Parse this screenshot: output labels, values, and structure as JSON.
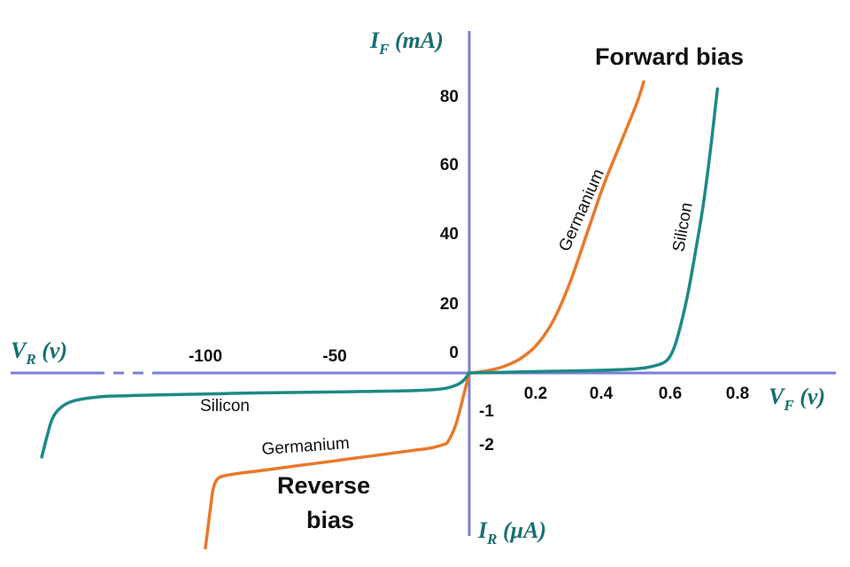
{
  "chart_data": {
    "type": "line",
    "title": "",
    "colors": {
      "axis": "#7b7fd6",
      "germanium": "#e8792b",
      "silicon": "#1d8a86",
      "axis_title": "#1a6f6f"
    },
    "axis_titles": {
      "forward_current": {
        "main": "I",
        "sub": "F",
        "unit": " (mA)"
      },
      "reverse_current": {
        "main": "I",
        "sub": "R",
        "unit": " (μA)"
      },
      "forward_voltage": {
        "main": "V",
        "sub": "F",
        "unit": " (v)"
      },
      "reverse_voltage": {
        "main": "V",
        "sub": "R",
        "unit": " (v)"
      }
    },
    "quadrant_labels": {
      "forward": "Forward bias",
      "reverse_line1": "Reverse",
      "reverse_line2": "bias"
    },
    "x_forward_ticks": [
      "0.2",
      "0.4",
      "0.6",
      "0.8"
    ],
    "x_reverse_ticks": [
      "-100",
      "-50"
    ],
    "y_forward_ticks": [
      "0",
      "20",
      "40",
      "60",
      "80"
    ],
    "y_reverse_ticks": [
      "-1",
      "-2"
    ],
    "xlim_forward": [
      0,
      0.8
    ],
    "ylim_forward": [
      0,
      80
    ],
    "xlim_reverse": [
      -100,
      0
    ],
    "ylim_reverse": [
      -2,
      0
    ],
    "series": [
      {
        "name": "Germanium",
        "region": "forward",
        "x": [
          0,
          0.05,
          0.1,
          0.15,
          0.2,
          0.25,
          0.3,
          0.35,
          0.4,
          0.45,
          0.5,
          0.52
        ],
        "y": [
          0,
          0.6,
          1.8,
          4,
          8,
          15,
          26,
          40,
          54,
          66,
          78,
          84
        ]
      },
      {
        "name": "Silicon",
        "region": "forward",
        "x": [
          0,
          0.1,
          0.2,
          0.3,
          0.4,
          0.5,
          0.55,
          0.58,
          0.6,
          0.62,
          0.65,
          0.68,
          0.7,
          0.72,
          0.74
        ],
        "y": [
          0,
          0.2,
          0.4,
          0.6,
          0.8,
          1.2,
          2,
          3,
          5,
          10,
          22,
          38,
          50,
          65,
          82
        ]
      },
      {
        "name": "Germanium",
        "region": "reverse",
        "x": [
          0,
          -2,
          -5,
          -8,
          -10,
          -15,
          -20,
          -30,
          -40,
          -50,
          -60,
          -70,
          -80,
          -90,
          -95,
          -97,
          -98,
          -99,
          -100
        ],
        "y": [
          0,
          -0.6,
          -1.45,
          -1.95,
          -2.05,
          -2.15,
          -2.2,
          -2.3,
          -2.4,
          -2.5,
          -2.6,
          -2.7,
          -2.8,
          -2.9,
          -3.0,
          -3.3,
          -3.8,
          -4.4,
          -5.0
        ]
      },
      {
        "name": "Silicon",
        "region": "reverse",
        "x": [
          0,
          -2,
          -5,
          -10,
          -20,
          -40,
          -60,
          -80,
          -100,
          -120,
          -130,
          -140,
          -150,
          -155,
          -158,
          -160,
          -162
        ],
        "y": [
          0,
          -0.2,
          -0.35,
          -0.45,
          -0.5,
          -0.53,
          -0.55,
          -0.57,
          -0.6,
          -0.63,
          -0.65,
          -0.68,
          -0.8,
          -1.0,
          -1.3,
          -1.8,
          -2.4
        ]
      }
    ],
    "curve_labels": [
      {
        "series": "Germanium",
        "region": "forward",
        "text": "Germanium"
      },
      {
        "series": "Silicon",
        "region": "forward",
        "text": "Silicon"
      },
      {
        "series": "Silicon",
        "region": "reverse",
        "text": "Silicon"
      },
      {
        "series": "Germanium",
        "region": "reverse",
        "text": "Germanium"
      }
    ]
  }
}
